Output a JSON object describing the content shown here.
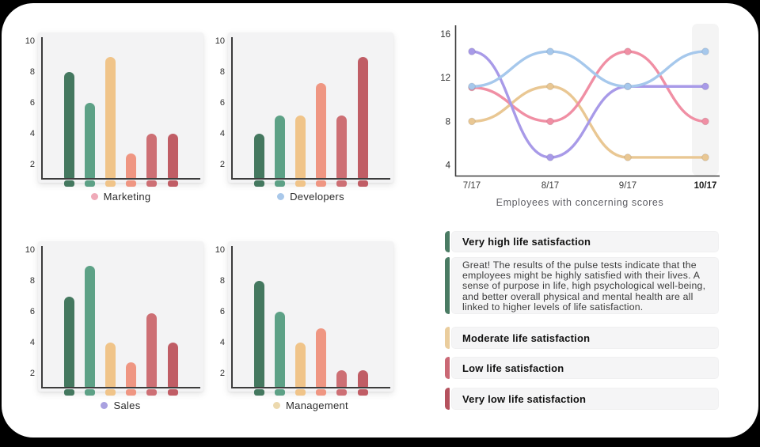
{
  "frame": {
    "background": "#000000",
    "card_background": "#ffffff",
    "panel_background": "#f3f3f4",
    "axis_color": "#3c3c3c"
  },
  "palette": {
    "bar_colors": [
      "#44785f",
      "#5da186",
      "#f0c489",
      "#ef9682",
      "#cd6f74",
      "#c05d65"
    ],
    "accent_green": "#4a7b63",
    "accent_tan": "#eacd9d",
    "accent_rose": "#ca6875",
    "accent_dark_rose": "#b5525e"
  },
  "chart_data": [
    {
      "type": "bar",
      "title": "Marketing",
      "legend_dot_color": "#efaab8",
      "legend_position": "below",
      "grid": false,
      "y_ticks": [
        10,
        8,
        6,
        4,
        2
      ],
      "ylim": [
        1,
        10.8
      ],
      "values": [
        8,
        6,
        9,
        2.7,
        4,
        4
      ],
      "bar_colors": [
        "#44785f",
        "#5da186",
        "#f0c489",
        "#ef9682",
        "#cd6f74",
        "#c05d65"
      ]
    },
    {
      "type": "bar",
      "title": "Developers",
      "legend_dot_color": "#a9c8ea",
      "legend_position": "below",
      "grid": false,
      "y_ticks": [
        10,
        8,
        6,
        4,
        2
      ],
      "ylim": [
        1,
        10.8
      ],
      "values": [
        4,
        5.2,
        5.2,
        7.3,
        5.2,
        9
      ],
      "bar_colors": [
        "#44785f",
        "#5da186",
        "#f0c489",
        "#ef9682",
        "#cd6f74",
        "#c05d65"
      ]
    },
    {
      "type": "bar",
      "title": "Sales",
      "legend_dot_color": "#a9a1e0",
      "legend_position": "below",
      "grid": false,
      "y_ticks": [
        10,
        8,
        6,
        4,
        2
      ],
      "ylim": [
        1,
        10.8
      ],
      "values": [
        7,
        9,
        4,
        2.7,
        5.9,
        4
      ],
      "bar_colors": [
        "#44785f",
        "#5da186",
        "#f0c489",
        "#ef9682",
        "#cd6f74",
        "#c05d65"
      ]
    },
    {
      "type": "bar",
      "title": "Management",
      "legend_dot_color": "#ecd9ae",
      "legend_position": "below",
      "grid": false,
      "y_ticks": [
        10,
        8,
        6,
        4,
        2
      ],
      "ylim": [
        1,
        10.8
      ],
      "values": [
        8,
        6,
        4,
        4.9,
        2.2,
        2.2
      ],
      "bar_colors": [
        "#44785f",
        "#5da186",
        "#f0c489",
        "#ef9682",
        "#cd6f74",
        "#c05d65"
      ]
    },
    {
      "type": "line",
      "caption": "Employees with concerning scores",
      "x_labels": [
        "7/17",
        "8/17",
        "9/17",
        "10/17"
      ],
      "highlighted_x": "10/17",
      "y_ticks": [
        16,
        12,
        8,
        4
      ],
      "ylim": [
        3,
        16.5
      ],
      "grid": false,
      "series": [
        {
          "name": "yellow",
          "color": "#e9c793",
          "values": [
            8,
            11.2,
            4.7,
            4.7
          ]
        },
        {
          "name": "pink",
          "color": "#f08fa4",
          "values": [
            11.1,
            8,
            14.4,
            8
          ]
        },
        {
          "name": "purple",
          "color": "#a89ae8",
          "values": [
            14.4,
            4.7,
            11.2,
            11.2
          ]
        },
        {
          "name": "blue",
          "color": "#a6c8ec",
          "values": [
            11.2,
            14.4,
            11.2,
            14.4
          ]
        }
      ]
    }
  ],
  "info_panel": {
    "items": [
      {
        "id": "very-high",
        "type": "title",
        "accent_color": "#4a7b63",
        "label": "Very high life satisfaction"
      },
      {
        "id": "description",
        "type": "paragraph",
        "accent_color": "#4a7b63",
        "text": "Great! The results of the pulse tests indicate that the employees might be highly satisfied with their lives. A sense of purpose in life, high psychological well-being, and better overall physical and mental health are all linked to higher levels of life satisfaction."
      },
      {
        "id": "moderate",
        "type": "title",
        "accent_color": "#eacd9d",
        "label": "Moderate life satisfaction"
      },
      {
        "id": "low",
        "type": "title",
        "accent_color": "#ca6875",
        "label": "Low life satisfaction"
      },
      {
        "id": "very-low",
        "type": "title",
        "accent_color": "#b5525e",
        "label": "Very low life satisfaction"
      }
    ]
  }
}
